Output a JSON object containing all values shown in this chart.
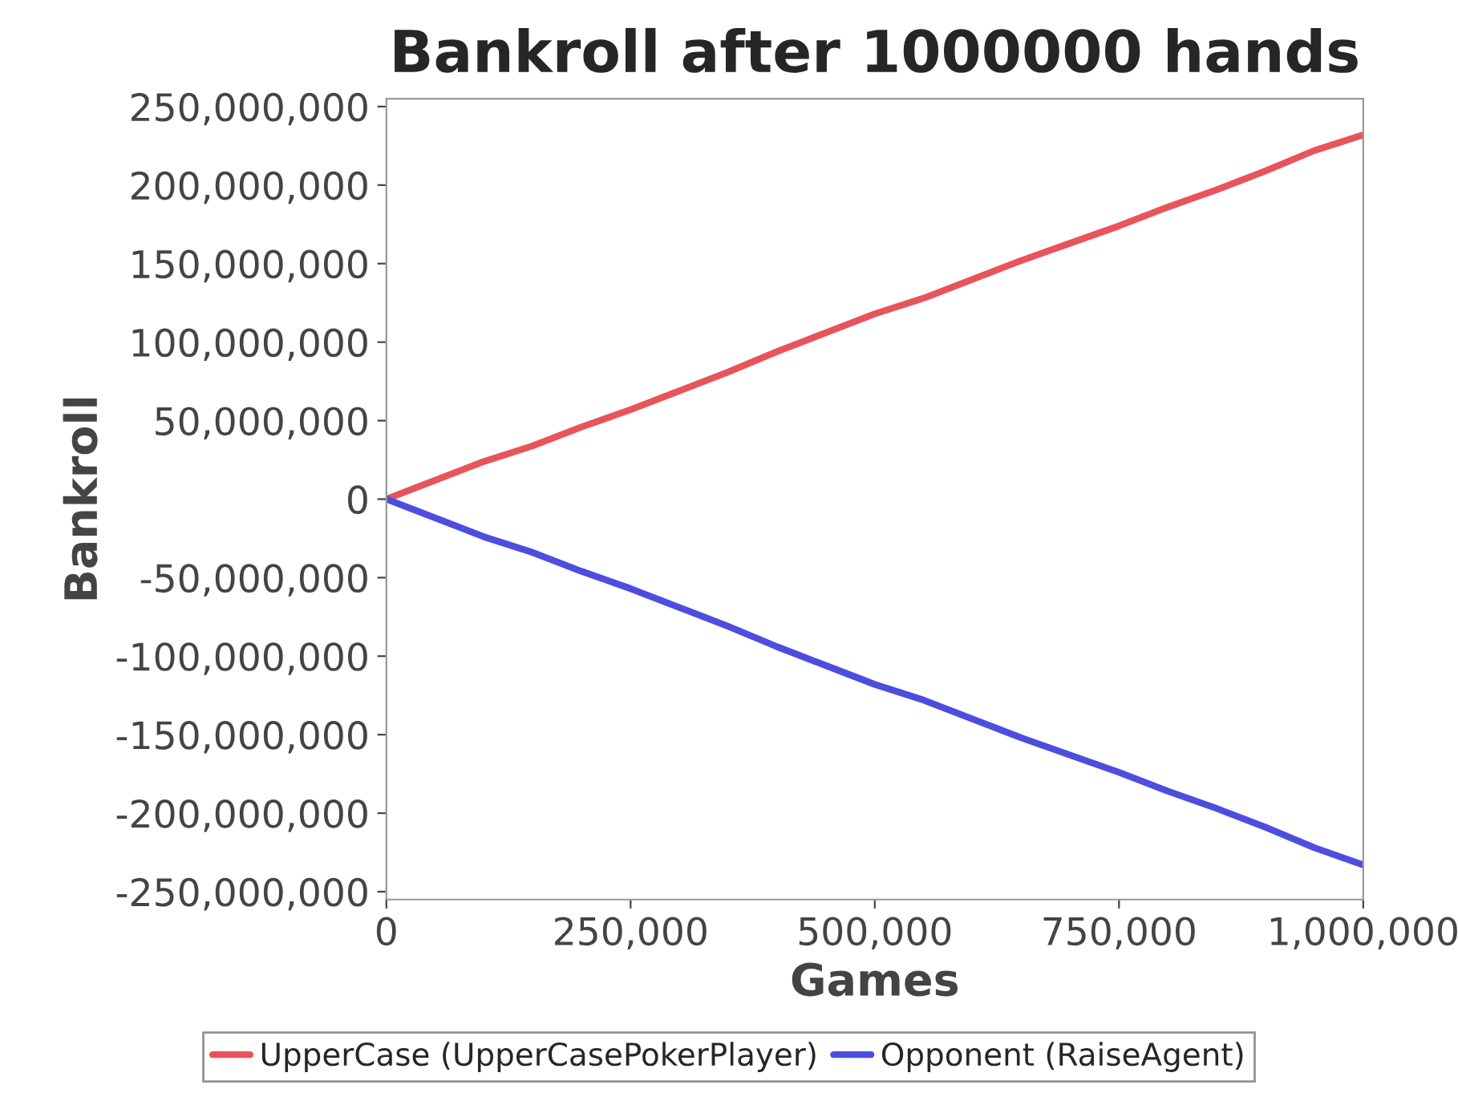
{
  "chart_data": {
    "type": "line",
    "title": "Bankroll after 1000000 hands",
    "xlabel": "Games",
    "ylabel": "Bankroll",
    "x": [
      0,
      50000,
      100000,
      150000,
      200000,
      250000,
      300000,
      350000,
      400000,
      450000,
      500000,
      550000,
      600000,
      650000,
      700000,
      750000,
      800000,
      850000,
      900000,
      950000,
      1000000
    ],
    "series": [
      {
        "name": "UpperCase (UpperCasePokerPlayer)",
        "color": "#e8545a",
        "values": [
          0,
          12000000,
          24000000,
          34000000,
          46000000,
          57000000,
          69000000,
          81000000,
          94000000,
          106000000,
          118000000,
          128000000,
          140000000,
          152000000,
          163000000,
          174000000,
          186000000,
          197000000,
          209000000,
          222000000,
          232000000
        ]
      },
      {
        "name": "Opponent (RaiseAgent)",
        "color": "#4d4ddf",
        "values": [
          0,
          -12000000,
          -24000000,
          -34000000,
          -46000000,
          -57000000,
          -69000000,
          -81000000,
          -94000000,
          -106000000,
          -118000000,
          -128000000,
          -140000000,
          -152000000,
          -163000000,
          -174000000,
          -186000000,
          -197000000,
          -209000000,
          -222000000,
          -233000000
        ]
      }
    ],
    "xlim": [
      0,
      1000000
    ],
    "xticks": [
      0,
      {
        "value": 250000,
        "label": "250,000"
      },
      {
        "value": 500000,
        "label": "500,000"
      },
      {
        "value": 750000,
        "label": "750,000"
      },
      {
        "value": 1000000,
        "label": "1,000,000"
      }
    ],
    "ylim": [
      -255000000,
      255000000
    ],
    "yticks": [
      {
        "value": -250000000,
        "label": "-250,000,000"
      },
      {
        "value": -200000000,
        "label": "-200,000,000"
      },
      {
        "value": -150000000,
        "label": "-150,000,000"
      },
      {
        "value": -100000000,
        "label": "-100,000,000"
      },
      {
        "value": -50000000,
        "label": "-50,000,000"
      },
      0,
      {
        "value": 50000000,
        "label": "50,000,000"
      },
      {
        "value": 100000000,
        "label": "100,000,000"
      },
      {
        "value": 150000000,
        "label": "150,000,000"
      },
      {
        "value": 200000000,
        "label": "200,000,000"
      },
      {
        "value": 250000000,
        "label": "250,000,000"
      }
    ],
    "grid": false,
    "legend": "bottom",
    "marker": "none",
    "line_style": "solid"
  }
}
